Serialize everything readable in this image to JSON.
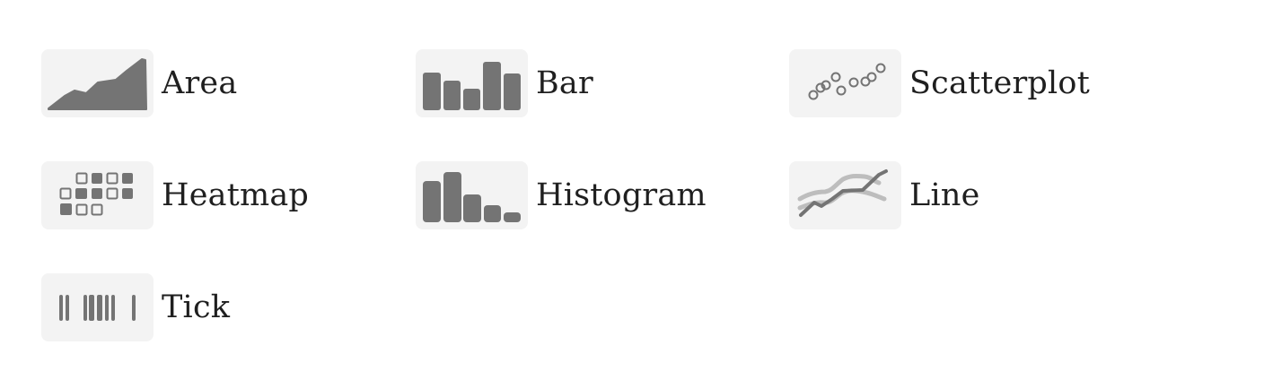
{
  "chart_types": [
    {
      "id": "area",
      "label": "Area",
      "icon": "area-chart-icon"
    },
    {
      "id": "bar",
      "label": "Bar",
      "icon": "bar-chart-icon"
    },
    {
      "id": "scatterplot",
      "label": "Scatterplot",
      "icon": "scatterplot-icon"
    },
    {
      "id": "heatmap",
      "label": "Heatmap",
      "icon": "heatmap-icon"
    },
    {
      "id": "histogram",
      "label": "Histogram",
      "icon": "histogram-icon"
    },
    {
      "id": "line",
      "label": "Line",
      "icon": "line-chart-icon"
    },
    {
      "id": "tick",
      "label": "Tick",
      "icon": "tick-plot-icon"
    }
  ],
  "colors": {
    "icon_fill": "#747474",
    "icon_light": "#bdbdbd",
    "thumb_bg": "#f3f3f3",
    "label": "#1f1f1f"
  }
}
